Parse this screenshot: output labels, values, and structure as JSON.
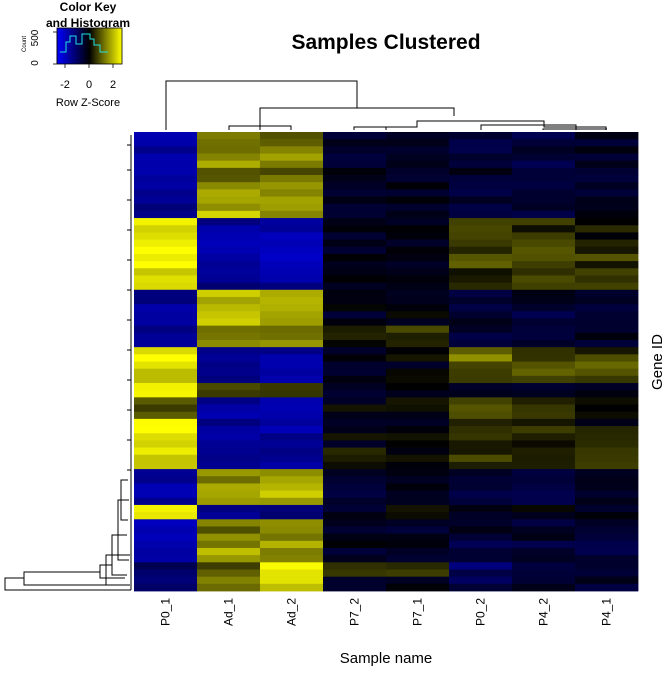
{
  "chart_data": {
    "type": "heatmap",
    "title": "Samples Clustered",
    "xlabel": "Sample name",
    "ylabel": "Gene ID",
    "columns": [
      "P0_1",
      "Ad_1",
      "Ad_2",
      "P7_2",
      "P7_1",
      "P0_2",
      "P4_2",
      "P4_1"
    ],
    "color_scale": {
      "low": "#0000cc",
      "mid": "#000000",
      "high": "#ffff00",
      "range": [
        -3,
        3
      ]
    },
    "row_bands": [
      {
        "rows": 2,
        "values": [
          -2.6,
          1.4,
          1.3,
          -0.6,
          -0.5,
          -0.7,
          -0.8,
          -0.6
        ]
      },
      {
        "rows": 3,
        "values": [
          -2.2,
          1.6,
          1.5,
          -0.6,
          -0.4,
          -0.7,
          -0.9,
          -0.6
        ]
      },
      {
        "rows": 2,
        "values": [
          -2.4,
          1.1,
          1.2,
          -0.5,
          -0.4,
          -0.6,
          -0.8,
          -0.5
        ]
      },
      {
        "rows": 3,
        "values": [
          -2.0,
          1.7,
          1.6,
          -0.7,
          -0.5,
          -0.8,
          -0.9,
          -0.5
        ]
      },
      {
        "rows": 2,
        "values": [
          -1.8,
          2.1,
          2.0,
          -0.6,
          -0.4,
          -0.9,
          -0.7,
          -0.6
        ]
      },
      {
        "rows": 3,
        "values": [
          2.9,
          -2.2,
          -2.4,
          -0.3,
          -0.2,
          0.5,
          0.4,
          0.2
        ]
      },
      {
        "rows": 4,
        "values": [
          2.8,
          -2.3,
          -2.5,
          -0.3,
          -0.2,
          0.8,
          1.1,
          0.6
        ]
      },
      {
        "rows": 3,
        "values": [
          2.6,
          -2.1,
          -2.2,
          -0.4,
          -0.3,
          0.3,
          0.5,
          0.4
        ]
      },
      {
        "rows": 2,
        "values": [
          -1.9,
          2.0,
          1.9,
          -0.5,
          -0.4,
          -0.6,
          -0.7,
          -0.7
        ]
      },
      {
        "rows": 3,
        "values": [
          -2.1,
          2.3,
          2.1,
          -0.4,
          -0.3,
          -0.7,
          -0.8,
          -0.6
        ]
      },
      {
        "rows": 3,
        "values": [
          -2.2,
          1.6,
          1.4,
          0.4,
          0.5,
          -0.6,
          -0.5,
          -0.4
        ]
      },
      {
        "rows": 2,
        "values": [
          2.9,
          -2.2,
          -2.3,
          -0.2,
          -0.1,
          1.3,
          0.7,
          0.5
        ]
      },
      {
        "rows": 3,
        "values": [
          2.4,
          -1.9,
          -2.2,
          -0.4,
          -0.3,
          0.6,
          0.9,
          0.8
        ]
      },
      {
        "rows": 2,
        "values": [
          2.8,
          0.8,
          1.0,
          -0.4,
          -0.3,
          -0.8,
          -0.7,
          -0.6
        ]
      },
      {
        "rows": 3,
        "values": [
          1.1,
          -2.3,
          -2.5,
          -0.2,
          -0.1,
          0.9,
          0.6,
          0.4
        ]
      },
      {
        "rows": 4,
        "values": [
          2.9,
          -2.0,
          -2.3,
          -0.2,
          -0.1,
          0.4,
          0.3,
          0.1
        ]
      },
      {
        "rows": 3,
        "values": [
          2.7,
          -1.8,
          -2.1,
          0.3,
          0.2,
          0.5,
          0.7,
          0.8
        ]
      },
      {
        "rows": 2,
        "values": [
          -2.0,
          1.5,
          1.7,
          -0.5,
          -0.6,
          -0.7,
          -0.8,
          -0.7
        ]
      },
      {
        "rows": 3,
        "values": [
          -2.3,
          2.0,
          2.2,
          -0.6,
          -0.4,
          -0.9,
          -0.7,
          -0.6
        ]
      },
      {
        "rows": 2,
        "values": [
          2.9,
          -2.1,
          -2.0,
          -0.4,
          -0.2,
          -0.5,
          -0.3,
          -0.4
        ]
      },
      {
        "rows": 3,
        "values": [
          -2.5,
          1.3,
          1.6,
          -0.5,
          -0.4,
          -0.7,
          -0.6,
          -0.5
        ]
      },
      {
        "rows": 3,
        "values": [
          -2.2,
          1.8,
          1.9,
          -0.4,
          -0.3,
          -0.8,
          -0.7,
          -0.8
        ]
      },
      {
        "rows": 2,
        "values": [
          -1.6,
          0.9,
          2.6,
          0.4,
          0.3,
          -1.4,
          -0.6,
          -0.5
        ]
      },
      {
        "rows": 2,
        "values": [
          -1.9,
          1.7,
          2.4,
          -0.5,
          -0.4,
          -1.2,
          -0.6,
          -0.7
        ]
      }
    ]
  }
}
